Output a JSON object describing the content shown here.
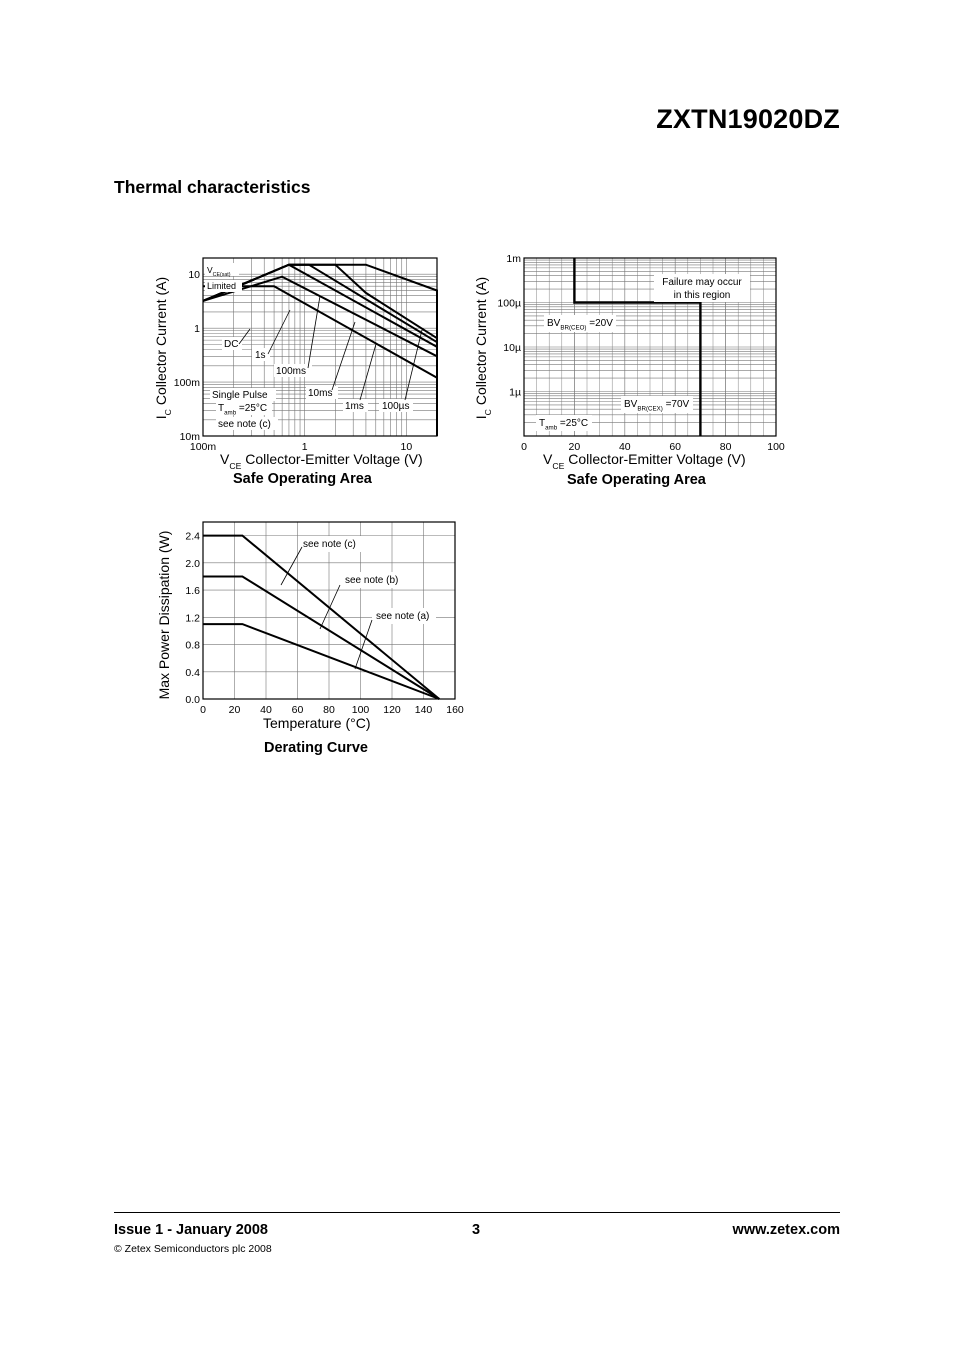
{
  "header": {
    "part_number": "ZXTN19020DZ",
    "section_title": "Thermal characteristics"
  },
  "chart_data": [
    {
      "type": "line",
      "id": "soa-log",
      "title": "Safe Operating Area",
      "x_scale": "log",
      "y_scale": "log",
      "xlim": [
        0.1,
        20
      ],
      "ylim": [
        0.01,
        20
      ],
      "xticks": [
        {
          "v": 0.1,
          "label": "100m"
        },
        {
          "v": 1,
          "label": "1"
        },
        {
          "v": 10,
          "label": "10"
        }
      ],
      "yticks": [
        {
          "v": 0.01,
          "label": "10m"
        },
        {
          "v": 0.1,
          "label": "100m"
        },
        {
          "v": 1,
          "label": "1"
        },
        {
          "v": 10,
          "label": "10"
        }
      ],
      "xlabel": {
        "sym": "V",
        "sub": "CE",
        "text": "Collector-Emitter Voltage (V)"
      },
      "ylabel": {
        "sym": "I",
        "sub": "C",
        "text": "Collector Current (A)"
      },
      "series": [
        {
          "name": "DC",
          "points": [
            [
              0.1,
              6
            ],
            [
              0.5,
              6
            ],
            [
              20,
              0.12
            ]
          ]
        },
        {
          "name": "1s",
          "points": [
            [
              0.1,
              3.2
            ],
            [
              0.6,
              9
            ],
            [
              20,
              0.3
            ]
          ]
        },
        {
          "name": "100ms",
          "points": [
            [
              0.1,
              3.2
            ],
            [
              0.7,
              15
            ],
            [
              20,
              0.45
            ]
          ]
        },
        {
          "name": "10ms",
          "points": [
            [
              0.1,
              3.2
            ],
            [
              0.7,
              15
            ],
            [
              1.1,
              15
            ],
            [
              20,
              0.55
            ]
          ]
        },
        {
          "name": "1ms",
          "points": [
            [
              0.1,
              3.2
            ],
            [
              0.7,
              15
            ],
            [
              2,
              15
            ],
            [
              4,
              4.5
            ],
            [
              20,
              0.65
            ]
          ]
        },
        {
          "name": "100µs",
          "points": [
            [
              0.1,
              3.2
            ],
            [
              0.7,
              15
            ],
            [
              4,
              15
            ],
            [
              20,
              5
            ],
            [
              20,
              0.01
            ]
          ]
        }
      ],
      "annotations": [
        {
          "sym": "V",
          "sub": "CE(sat)",
          "text": ""
        },
        {
          "text": "Limited"
        },
        {
          "text": "DC"
        },
        {
          "text": "1s"
        },
        {
          "text": "100ms"
        },
        {
          "text": "10ms"
        },
        {
          "text": "1ms"
        },
        {
          "text": "100µs"
        },
        {
          "text": "Single Pulse"
        },
        {
          "sym": "T",
          "sub": "amb",
          "text": "=25°C"
        },
        {
          "text": "see note (c)"
        }
      ]
    },
    {
      "type": "line",
      "id": "soa-linear",
      "title": "Safe Operating Area",
      "x_scale": "linear",
      "y_scale": "log",
      "xlim": [
        0,
        100
      ],
      "ylim": [
        1e-07,
        0.001
      ],
      "xticks": [
        {
          "v": 0,
          "label": "0"
        },
        {
          "v": 20,
          "label": "20"
        },
        {
          "v": 40,
          "label": "40"
        },
        {
          "v": 60,
          "label": "60"
        },
        {
          "v": 80,
          "label": "80"
        },
        {
          "v": 100,
          "label": "100"
        }
      ],
      "yticks": [
        {
          "v": 1e-06,
          "label": "1µ"
        },
        {
          "v": 1e-05,
          "label": "10µ"
        },
        {
          "v": 0.0001,
          "label": "100µ"
        },
        {
          "v": 0.001,
          "label": "1m"
        }
      ],
      "xlabel": {
        "sym": "V",
        "sub": "CE",
        "text": "Collector-Emitter Voltage (V)"
      },
      "ylabel": {
        "sym": "I",
        "sub": "C",
        "text": "Collector Current (A)"
      },
      "series": [
        {
          "name": "boundary",
          "points": [
            [
              20,
              0.001
            ],
            [
              20,
              0.0001
            ],
            [
              70,
              0.0001
            ],
            [
              70,
              1e-07
            ]
          ]
        }
      ],
      "annotations": [
        {
          "text": "Failure may occur"
        },
        {
          "text": "in this region"
        },
        {
          "sym": "BV",
          "sub": "BR(CEO)",
          "text": "=20V"
        },
        {
          "sym": "BV",
          "sub": "BR(CEX)",
          "text": "=70V"
        },
        {
          "sym": "T",
          "sub": "amb",
          "text": "=25°C"
        }
      ]
    },
    {
      "type": "line",
      "id": "derating",
      "title": "Derating Curve",
      "x_scale": "linear",
      "y_scale": "linear",
      "xlim": [
        0,
        160
      ],
      "ylim": [
        0,
        2.6
      ],
      "xticks": [
        {
          "v": 0,
          "label": "0"
        },
        {
          "v": 20,
          "label": "20"
        },
        {
          "v": 40,
          "label": "40"
        },
        {
          "v": 60,
          "label": "60"
        },
        {
          "v": 80,
          "label": "80"
        },
        {
          "v": 100,
          "label": "100"
        },
        {
          "v": 120,
          "label": "120"
        },
        {
          "v": 140,
          "label": "140"
        },
        {
          "v": 160,
          "label": "160"
        }
      ],
      "yticks": [
        {
          "v": 0,
          "label": "0.0"
        },
        {
          "v": 0.4,
          "label": "0.4"
        },
        {
          "v": 0.8,
          "label": "0.8"
        },
        {
          "v": 1.2,
          "label": "1.2"
        },
        {
          "v": 1.6,
          "label": "1.6"
        },
        {
          "v": 2.0,
          "label": "2.0"
        },
        {
          "v": 2.4,
          "label": "2.4"
        }
      ],
      "xlabel": {
        "text": "Temperature (°C)"
      },
      "ylabel": {
        "text": "Max Power Dissipation (W)"
      },
      "series": [
        {
          "name": "see note (c)",
          "points": [
            [
              0,
              2.4
            ],
            [
              25,
              2.4
            ],
            [
              150,
              0
            ]
          ]
        },
        {
          "name": "see note (b)",
          "points": [
            [
              0,
              1.8
            ],
            [
              25,
              1.8
            ],
            [
              150,
              0
            ]
          ]
        },
        {
          "name": "see note (a)",
          "points": [
            [
              0,
              1.1
            ],
            [
              25,
              1.1
            ],
            [
              150,
              0
            ]
          ]
        }
      ],
      "annotations": [
        {
          "text": "see note (c)"
        },
        {
          "text": "see note (b)"
        },
        {
          "text": "see note (a)"
        }
      ]
    }
  ],
  "footer": {
    "issue": "Issue 1 - January 2008",
    "copyright": "© Zetex Semiconductors plc 2008",
    "page": "3",
    "website": "www.zetex.com"
  }
}
